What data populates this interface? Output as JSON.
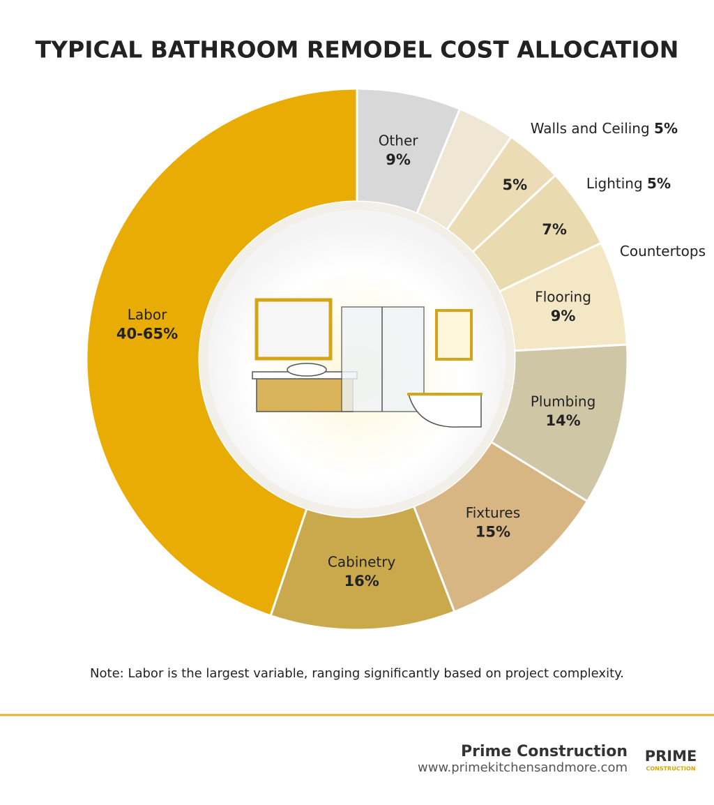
{
  "chart_data": {
    "type": "donut",
    "title": "TYPICAL BATHROOM REMODEL COST ALLOCATION",
    "categories": [
      "Other",
      "Walls and Ceiling",
      "Lighting",
      "Countertops",
      "Flooring",
      "Plumbing",
      "Fixtures",
      "Cabinetry",
      "Labor"
    ],
    "values": [
      9,
      5,
      5,
      7,
      9,
      14,
      15,
      16,
      40
    ],
    "range_high": [
      null,
      null,
      null,
      null,
      null,
      null,
      null,
      null,
      65
    ],
    "value_labels": [
      "9%",
      "5%",
      "5%",
      "7%",
      "9%",
      "14%",
      "15%",
      "16%",
      "40-65%"
    ],
    "colors": [
      "#d8d8d8",
      "#efe6d3",
      "#ecdcb6",
      "#eadab0",
      "#f4e7c6",
      "#cfc6a6",
      "#d8b684",
      "#c9a94c",
      "#e8ac05"
    ]
  },
  "note": "Note: Labor is the largest variable, ranging significantly based on project complexity.",
  "footer": {
    "company": "Prime Construction",
    "url": "www.primekitchensandmore.com",
    "logo": "PRIME",
    "logo_sub": "CONSTRUCTION"
  }
}
